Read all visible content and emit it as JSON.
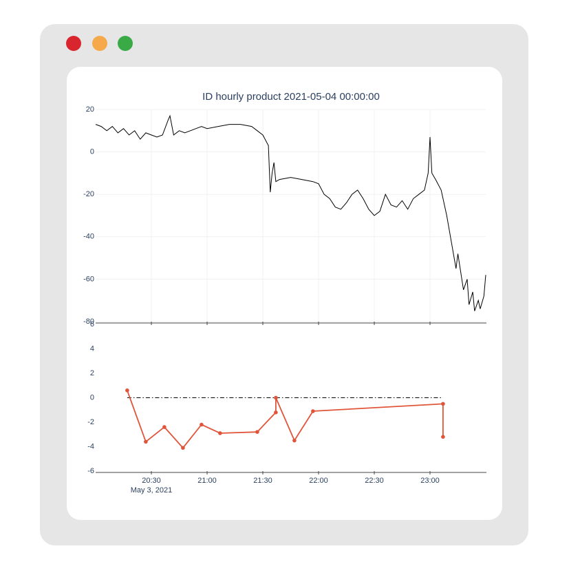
{
  "chart_data": [
    {
      "type": "line",
      "title": "ID hourly product 2021-05-04 00:00:00",
      "xlim": [
        "2021-05-03 20:00",
        "2021-05-03 23:30"
      ],
      "xticks": [
        "2021-05-03 20:30",
        "2021-05-03 21:00",
        "2021-05-03 21:30",
        "2021-05-03 22:00",
        "2021-05-03 22:30",
        "2021-05-03 23:00"
      ],
      "ylim": [
        -80,
        20
      ],
      "yticks": [
        -80,
        -60,
        -40,
        -20,
        0,
        20
      ],
      "grid": true,
      "series": [
        {
          "color": "#000000",
          "x": [
            "2021-05-03 20:00",
            "2021-05-03 20:03",
            "2021-05-03 20:06",
            "2021-05-03 20:09",
            "2021-05-03 20:12",
            "2021-05-03 20:15",
            "2021-05-03 20:18",
            "2021-05-03 20:21",
            "2021-05-03 20:24",
            "2021-05-03 20:27",
            "2021-05-03 20:30",
            "2021-05-03 20:33",
            "2021-05-03 20:36",
            "2021-05-03 20:39",
            "2021-05-03 20:40",
            "2021-05-03 20:42",
            "2021-05-03 20:45",
            "2021-05-03 20:48",
            "2021-05-03 20:51",
            "2021-05-03 20:54",
            "2021-05-03 20:57",
            "2021-05-03 21:00",
            "2021-05-03 21:06",
            "2021-05-03 21:12",
            "2021-05-03 21:18",
            "2021-05-03 21:24",
            "2021-05-03 21:27",
            "2021-05-03 21:30",
            "2021-05-03 21:33",
            "2021-05-03 21:34",
            "2021-05-03 21:35",
            "2021-05-03 21:36",
            "2021-05-03 21:37",
            "2021-05-03 21:39",
            "2021-05-03 21:45",
            "2021-05-03 21:51",
            "2021-05-03 21:57",
            "2021-05-03 22:00",
            "2021-05-03 22:03",
            "2021-05-03 22:06",
            "2021-05-03 22:09",
            "2021-05-03 22:12",
            "2021-05-03 22:15",
            "2021-05-03 22:18",
            "2021-05-03 22:21",
            "2021-05-03 22:24",
            "2021-05-03 22:27",
            "2021-05-03 22:30",
            "2021-05-03 22:33",
            "2021-05-03 22:36",
            "2021-05-03 22:39",
            "2021-05-03 22:42",
            "2021-05-03 22:45",
            "2021-05-03 22:48",
            "2021-05-03 22:51",
            "2021-05-03 22:54",
            "2021-05-03 22:57",
            "2021-05-03 22:59",
            "2021-05-03 23:00",
            "2021-05-03 23:01",
            "2021-05-03 23:03",
            "2021-05-03 23:06",
            "2021-05-03 23:09",
            "2021-05-03 23:12",
            "2021-05-03 23:14",
            "2021-05-03 23:15",
            "2021-05-03 23:18",
            "2021-05-03 23:20",
            "2021-05-03 23:21",
            "2021-05-03 23:23",
            "2021-05-03 23:24",
            "2021-05-03 23:26",
            "2021-05-03 23:27",
            "2021-05-03 23:29",
            "2021-05-03 23:30"
          ],
          "values": [
            13,
            12,
            10,
            12,
            9,
            11,
            8,
            10,
            6,
            9,
            8,
            7,
            8,
            15,
            17,
            8,
            10,
            9,
            10,
            11,
            12,
            11,
            12,
            13,
            13,
            12,
            10,
            8,
            3,
            -19,
            -10,
            -5,
            -14,
            -13,
            -12,
            -13,
            -14,
            -15,
            -20,
            -22,
            -26,
            -27,
            -24,
            -20,
            -18,
            -22,
            -27,
            -30,
            -28,
            -20,
            -25,
            -26,
            -23,
            -27,
            -22,
            -20,
            -18,
            -10,
            7,
            -10,
            -13,
            -18,
            -30,
            -45,
            -55,
            -48,
            -65,
            -60,
            -72,
            -66,
            -75,
            -70,
            -74,
            -68,
            -58
          ]
        }
      ]
    },
    {
      "type": "line",
      "xlim": [
        "2021-05-03 20:00",
        "2021-05-03 23:30"
      ],
      "xticks": [
        {
          "value": "2021-05-03 20:30",
          "label": "20:30"
        },
        {
          "value": "2021-05-03 21:00",
          "label": "21:00"
        },
        {
          "value": "2021-05-03 21:30",
          "label": "21:30"
        },
        {
          "value": "2021-05-03 22:00",
          "label": "22:00"
        },
        {
          "value": "2021-05-03 22:30",
          "label": "22:30"
        },
        {
          "value": "2021-05-03 23:00",
          "label": "23:00"
        }
      ],
      "x_date_label": "May 3, 2021",
      "ylim": [
        -6,
        6
      ],
      "yticks": [
        -6,
        -4,
        -2,
        0,
        2,
        4,
        6
      ],
      "grid": false,
      "series": [
        {
          "color": "#000000",
          "dash": "dashdot",
          "markers": false,
          "x": [
            "2021-05-03 20:17",
            "2021-05-03 23:07"
          ],
          "values": [
            0,
            0
          ]
        },
        {
          "color": "#e0553a",
          "markers": true,
          "x": [
            "2021-05-03 20:17",
            "2021-05-03 20:27",
            "2021-05-03 20:37",
            "2021-05-03 20:47",
            "2021-05-03 20:57",
            "2021-05-03 21:07",
            "2021-05-03 21:27",
            "2021-05-03 21:37",
            "2021-05-03 21:37",
            "2021-05-03 21:47",
            "2021-05-03 21:57",
            "2021-05-03 23:07",
            "2021-05-03 23:07"
          ],
          "values": [
            0.6,
            -3.6,
            -2.4,
            -4.1,
            -2.2,
            -2.9,
            -2.8,
            -1.2,
            0.0,
            -3.5,
            -1.1,
            -0.5,
            -3.2
          ]
        }
      ]
    }
  ]
}
